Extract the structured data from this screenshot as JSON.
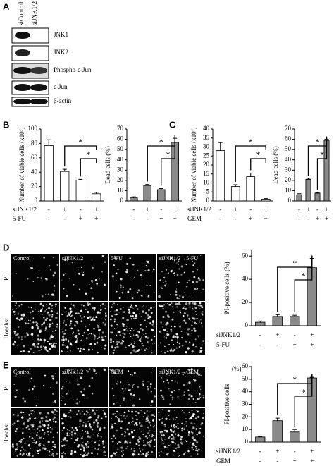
{
  "panels": {
    "a": "A",
    "b": "B",
    "c": "C",
    "d": "D",
    "e": "E"
  },
  "blot": {
    "columns": [
      "siControl",
      "siJNK1/2"
    ],
    "rows": [
      "JNK1",
      "JNK2",
      "Phospho-c-Jun",
      "c-Jun",
      "β-actin"
    ]
  },
  "micrographs": {
    "d": {
      "columns": [
        "Control",
        "siJNK1/2",
        "5-FU",
        "siJNK1/2→5-FU"
      ],
      "rows": [
        "PI",
        "Hoechst"
      ]
    },
    "e": {
      "columns": [
        "Control",
        "siJNK1/2",
        "GEM",
        "siJNK1/2→GEM"
      ],
      "rows": [
        "PI",
        "Hoechst"
      ]
    }
  },
  "chart_data": [
    {
      "type": "bar",
      "ylabel": "Number of viable cells (x10³)",
      "values": [
        77,
        41,
        29,
        10
      ],
      "errors": [
        8,
        3,
        1,
        2
      ],
      "color": "#ffffff",
      "ylim": [
        0,
        100
      ],
      "yticks": [
        0,
        20,
        40,
        60,
        80,
        100
      ],
      "annotations": [
        "*",
        "*"
      ],
      "treatments": [
        {
          "name": "siJNK1/2",
          "signs": [
            "-",
            "+",
            "-",
            "+"
          ]
        },
        {
          "name": "5-FU",
          "signs": [
            "-",
            "-",
            "+",
            "+"
          ]
        }
      ]
    },
    {
      "type": "bar",
      "ylabel": "Dead cells (%)",
      "values": [
        3,
        15,
        11,
        57
      ],
      "errors": [
        1,
        1,
        1,
        4
      ],
      "color": "#8a8a8a",
      "ylim": [
        0,
        70
      ],
      "yticks": [
        0,
        10,
        20,
        30,
        40,
        50,
        60,
        70
      ],
      "annotations": [
        "*",
        "*"
      ],
      "treatments": [
        {
          "signs": [
            "-",
            "+",
            "-",
            "+"
          ]
        },
        {
          "signs": [
            "-",
            "-",
            "+",
            "+"
          ]
        }
      ]
    },
    {
      "type": "bar",
      "ylabel": "Number of viable cells (x10³)",
      "values": [
        28,
        8,
        13.5,
        1
      ],
      "errors": [
        4.5,
        1,
        2,
        0.3
      ],
      "color": "#ffffff",
      "ylim": [
        0,
        40
      ],
      "yticks": [
        0,
        5,
        10,
        15,
        20,
        25,
        30,
        35,
        40
      ],
      "annotations": [
        "*",
        "*"
      ],
      "treatments": [
        {
          "name": "siJNK1/2",
          "signs": [
            "-",
            "+",
            "-",
            "+"
          ]
        },
        {
          "name": "GEM",
          "signs": [
            "-",
            "-",
            "+",
            "+"
          ]
        }
      ]
    },
    {
      "type": "bar",
      "ylabel": "Dead cells (%)",
      "values": [
        6,
        21,
        7.5,
        59
      ],
      "errors": [
        1,
        1,
        0.5,
        1
      ],
      "color": "#8a8a8a",
      "ylim": [
        0,
        70
      ],
      "yticks": [
        0,
        10,
        20,
        30,
        40,
        50,
        60,
        70
      ],
      "annotations": [
        "*",
        "*"
      ],
      "treatments": [
        {
          "signs": [
            "-",
            "+",
            "-",
            "+"
          ]
        },
        {
          "signs": [
            "-",
            "-",
            "+",
            "+"
          ]
        }
      ]
    },
    {
      "type": "bar",
      "ylabel": "PI-positive cells (%)",
      "values": [
        3,
        8,
        8,
        50
      ],
      "errors": [
        1,
        1.5,
        1,
        8
      ],
      "color": "#8a8a8a",
      "ylim": [
        0,
        65
      ],
      "yticks": [
        0,
        20,
        40,
        60
      ],
      "annotations": [
        "*",
        "*"
      ],
      "treatments": [
        {
          "name": "siJNK1/2",
          "signs": [
            "-",
            "+",
            "-",
            "+"
          ]
        },
        {
          "name": "5-FU",
          "signs": [
            "-",
            "-",
            "+",
            "+"
          ]
        }
      ]
    },
    {
      "type": "bar",
      "ylabel": "PI-positive cells",
      "yunit": "(%)",
      "values": [
        4,
        17,
        8,
        51
      ],
      "errors": [
        0.5,
        2,
        2,
        0.5
      ],
      "color": "#8a8a8a",
      "ylim": [
        0,
        60
      ],
      "yticks": [
        0,
        10,
        20,
        30,
        40,
        50,
        60
      ],
      "annotations": [
        "*",
        "*"
      ],
      "treatments": [
        {
          "name": "siJNK1/2",
          "signs": [
            "-",
            "+",
            "-",
            "+"
          ]
        },
        {
          "name": "GEM",
          "signs": [
            "-",
            "-",
            "+",
            "+"
          ]
        }
      ]
    }
  ]
}
